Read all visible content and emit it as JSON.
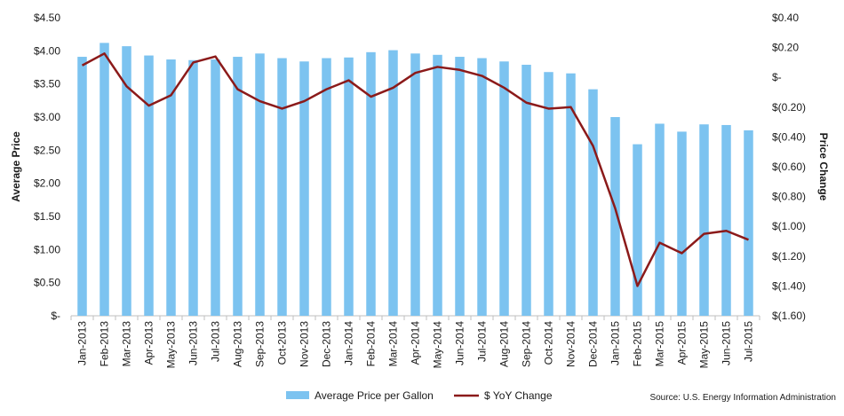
{
  "chart_data": {
    "type": "bar+line",
    "source": "Source: U.S. Energy Information Administration",
    "categories": [
      "Jan-2013",
      "Feb-2013",
      "Mar-2013",
      "Apr-2013",
      "May-2013",
      "Jun-2013",
      "Jul-2013",
      "Aug-2013",
      "Sep-2013",
      "Oct-2013",
      "Nov-2013",
      "Dec-2013",
      "Jan-2014",
      "Feb-2014",
      "Mar-2014",
      "Apr-2014",
      "May-2014",
      "Jun-2014",
      "Jul-2014",
      "Aug-2014",
      "Sep-2014",
      "Oct-2014",
      "Nov-2014",
      "Dec-2014",
      "Jan-2015",
      "Feb-2015",
      "Mar-2015",
      "Apr-2015",
      "May-2015",
      "Jun-2015",
      "Jul-2015"
    ],
    "left_axis": {
      "label": "Average Price",
      "ylim": [
        0,
        4.5
      ],
      "ticks": [
        4.5,
        4.0,
        3.5,
        3.0,
        2.5,
        2.0,
        1.5,
        1.0,
        0.5,
        0
      ],
      "tick_labels": [
        "$4.50",
        "$4.00",
        "$3.50",
        "$3.00",
        "$2.50",
        "$2.00",
        "$1.50",
        "$1.00",
        "$0.50",
        "$-"
      ]
    },
    "right_axis": {
      "label": "Price Change",
      "ylim": [
        -1.6,
        0.4
      ],
      "ticks": [
        0.4,
        0.2,
        0,
        -0.2,
        -0.4,
        -0.6,
        -0.8,
        -1.0,
        -1.2,
        -1.4,
        -1.6
      ],
      "tick_labels": [
        "$0.40",
        "$0.20",
        "$-",
        "$(0.20)",
        "$(0.40)",
        "$(0.60)",
        "$(0.80)",
        "$(1.00)",
        "$(1.20)",
        "$(1.40)",
        "$(1.60)"
      ]
    },
    "series": [
      {
        "name": "Average Price per Gallon",
        "type": "bar",
        "axis": "left",
        "color": "#7cc3f0",
        "values": [
          3.91,
          4.12,
          4.07,
          3.93,
          3.87,
          3.86,
          3.87,
          3.91,
          3.96,
          3.89,
          3.84,
          3.89,
          3.9,
          3.98,
          4.01,
          3.96,
          3.94,
          3.91,
          3.89,
          3.84,
          3.79,
          3.68,
          3.66,
          3.42,
          3.0,
          2.59,
          2.9,
          2.78,
          2.89,
          2.88,
          2.8
        ]
      },
      {
        "name": "$ YoY Change",
        "type": "line",
        "axis": "right",
        "color": "#8b1a1a",
        "values": [
          0.08,
          0.16,
          -0.06,
          -0.19,
          -0.12,
          0.1,
          0.14,
          -0.08,
          -0.16,
          -0.21,
          -0.16,
          -0.08,
          -0.02,
          -0.13,
          -0.07,
          0.03,
          0.07,
          0.05,
          0.01,
          -0.07,
          -0.17,
          -0.21,
          -0.2,
          -0.46,
          -0.88,
          -1.4,
          -1.11,
          -1.18,
          -1.05,
          -1.03,
          -1.09
        ]
      }
    ]
  }
}
